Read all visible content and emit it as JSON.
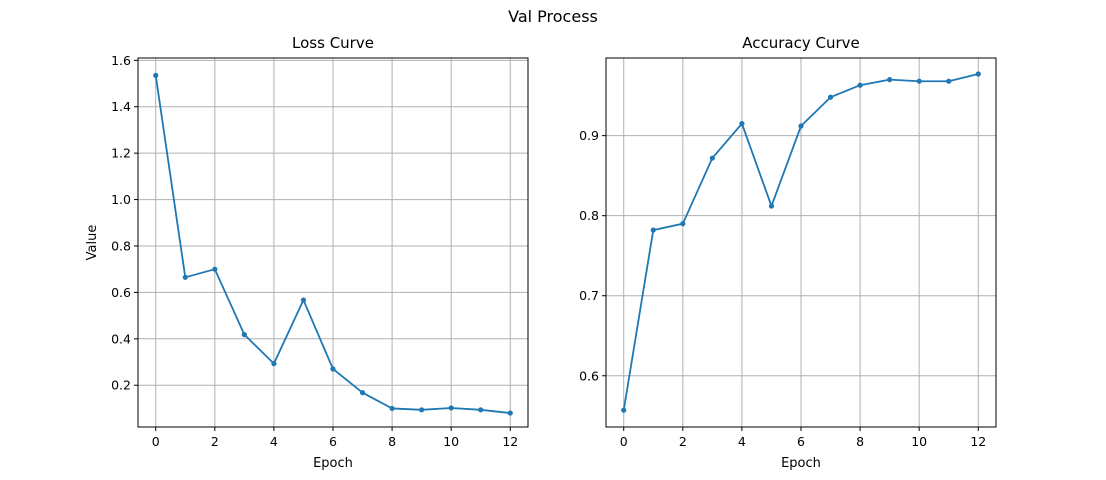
{
  "figure": {
    "title": "Val Process"
  },
  "chart_data": [
    {
      "type": "line",
      "title": "Loss Curve",
      "xlabel": "Epoch",
      "ylabel": "Value",
      "xlim": [
        -0.6,
        12.6
      ],
      "ylim": [
        0.02,
        1.61
      ],
      "xticks": [
        0,
        2,
        4,
        6,
        8,
        10,
        12
      ],
      "yticks": [
        0.2,
        0.4,
        0.6,
        0.8,
        1.0,
        1.2,
        1.4,
        1.6
      ],
      "ytick_labels": [
        "0.2",
        "0.4",
        "0.6",
        "0.8",
        "1.0",
        "1.2",
        "1.4",
        "1.6"
      ],
      "grid": true,
      "color": "#1f77b4",
      "series": [
        {
          "x": [
            0,
            1,
            2,
            3,
            4,
            5,
            6,
            7,
            8,
            9,
            10,
            11,
            12
          ],
          "values": [
            1.535,
            0.665,
            0.7,
            0.418,
            0.293,
            0.567,
            0.27,
            0.168,
            0.1,
            0.094,
            0.102,
            0.094,
            0.08
          ]
        }
      ]
    },
    {
      "type": "line",
      "title": "Accuracy Curve",
      "xlabel": "Epoch",
      "ylabel": "",
      "xlim": [
        -0.6,
        12.6
      ],
      "ylim": [
        0.536,
        0.997
      ],
      "xticks": [
        0,
        2,
        4,
        6,
        8,
        10,
        12
      ],
      "yticks": [
        0.6,
        0.7,
        0.8,
        0.9
      ],
      "ytick_labels": [
        "0.6",
        "0.7",
        "0.8",
        "0.9"
      ],
      "grid": true,
      "color": "#1f77b4",
      "series": [
        {
          "x": [
            0,
            1,
            2,
            3,
            4,
            5,
            6,
            7,
            8,
            9,
            10,
            11,
            12
          ],
          "values": [
            0.557,
            0.782,
            0.79,
            0.872,
            0.915,
            0.812,
            0.912,
            0.948,
            0.963,
            0.97,
            0.968,
            0.968,
            0.977
          ]
        }
      ]
    }
  ]
}
